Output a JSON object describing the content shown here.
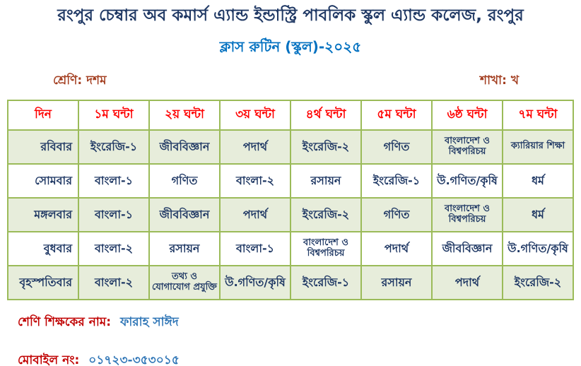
{
  "page": {
    "title": "রংপুর চেম্বার অব কমার্স এ্যান্ড ইন্ডাস্ট্রি পাবলিক স্কুল এ্যান্ড কলেজ, রংপুর",
    "subtitle": "ক্লাস রুটিন (স্কুল)-২০২৫"
  },
  "meta": {
    "class_label": "শ্রেণি:",
    "class_value": "দশম",
    "section_label": "শাখা:",
    "section_value": "খ"
  },
  "table": {
    "headers": [
      "দিন",
      "১ম ঘন্টা",
      "২য় ঘন্টা",
      "৩য় ঘন্টা",
      "৪র্থ ঘন্টা",
      "৫ম ঘন্টা",
      "৬ষ্ঠ ঘন্টা",
      "৭ম ঘন্টা"
    ],
    "rows": [
      {
        "day": "রবিবার",
        "subjects": [
          {
            "text": "ইংরেজি-১",
            "small": false
          },
          {
            "text": "জীববিজ্ঞান",
            "small": false
          },
          {
            "text": "পদার্থ",
            "small": false
          },
          {
            "text": "ইংরেজি-২",
            "small": false
          },
          {
            "text": "গণিত",
            "small": false
          },
          {
            "text": "বাংলাদেশ ও বিশ্বপরিচয়",
            "small": true
          },
          {
            "text": "ক্যারিয়ার শিক্ষা",
            "small": true
          }
        ]
      },
      {
        "day": "সোমবার",
        "subjects": [
          {
            "text": "বাংলা-১",
            "small": false
          },
          {
            "text": "গণিত",
            "small": false
          },
          {
            "text": "বাংলা-২",
            "small": false
          },
          {
            "text": "রসায়ন",
            "small": false
          },
          {
            "text": "ইংরেজি-১",
            "small": false
          },
          {
            "text": "উ.গণিত/কৃষি",
            "small": false
          },
          {
            "text": "ধর্ম",
            "small": false
          }
        ]
      },
      {
        "day": "মঙ্গলবার",
        "subjects": [
          {
            "text": "বাংলা-১",
            "small": false
          },
          {
            "text": "জীববিজ্ঞান",
            "small": false
          },
          {
            "text": "পদার্থ",
            "small": false
          },
          {
            "text": "ইংরেজি-২",
            "small": false
          },
          {
            "text": "গণিত",
            "small": false
          },
          {
            "text": "বাংলাদেশ ও বিশ্বপরিচয়",
            "small": true
          },
          {
            "text": "ধর্ম",
            "small": false
          }
        ]
      },
      {
        "day": "বুধবার",
        "subjects": [
          {
            "text": "বাংলা-২",
            "small": false
          },
          {
            "text": "রসায়ন",
            "small": false
          },
          {
            "text": "বাংলা-১",
            "small": false
          },
          {
            "text": "বাংলাদেশ ও বিশ্বপরিচয়",
            "small": true
          },
          {
            "text": "পদার্থ",
            "small": false
          },
          {
            "text": "জীববিজ্ঞান",
            "small": false
          },
          {
            "text": "উ.গণিত/কৃষি",
            "small": false
          }
        ]
      },
      {
        "day": "বৃহস্পতিবার",
        "subjects": [
          {
            "text": "বাংলা-২",
            "small": false
          },
          {
            "text": "তথ্য ও যোগাযোগ প্রযুক্তি",
            "small": true
          },
          {
            "text": "উ.গণিত/কৃষি",
            "small": false
          },
          {
            "text": "ইংরেজি-১",
            "small": false
          },
          {
            "text": "রসায়ন",
            "small": false
          },
          {
            "text": "পদার্থ",
            "small": false
          },
          {
            "text": "ইংরেজি-২",
            "small": false
          }
        ]
      }
    ]
  },
  "footer": {
    "teacher_label": "শেণি শিক্ষকের নাম:",
    "teacher_name": "ফারাহ সাঈদ",
    "mobile_label": "মোবাইল নং:",
    "mobile_number": "০১৭২৩-৩৫৩০১৫"
  },
  "colors": {
    "title-navy": "#1F3864",
    "bright-blue": "#0070C0",
    "maroon": "#A33E20",
    "header-red": "#FF0000",
    "cell-navy": "#1F3864",
    "border-olive": "#9BBB59",
    "row-green": "#E7EDDB",
    "label-red": "#C00000",
    "value-blue": "#2E75B6"
  }
}
